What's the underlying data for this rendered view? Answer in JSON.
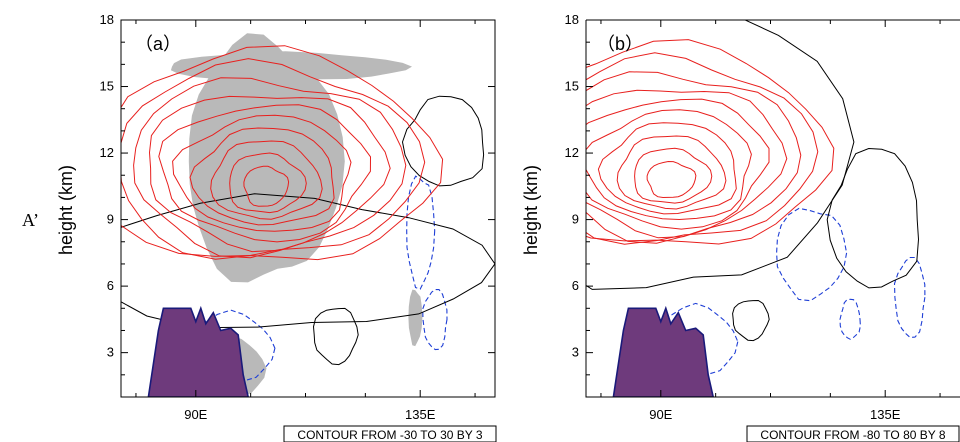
{
  "figure_label": "A’",
  "chart_data": [
    {
      "type": "contour",
      "panel_label": "（a）",
      "ylabel": "height (km)",
      "xlabel": "",
      "x_ticks": [
        "90E",
        "135E"
      ],
      "x_tick_values": [
        90,
        135
      ],
      "y_ticks": [
        "3",
        "6",
        "9",
        "12",
        "15",
        "18"
      ],
      "y_tick_values": [
        3,
        6,
        9,
        12,
        15,
        18
      ],
      "xlim": [
        75,
        150
      ],
      "ylim": [
        1,
        18
      ],
      "contour_info": "CONTOUR FROM -30 TO 30 BY 3",
      "contour_min": -30,
      "contour_max": 30,
      "contour_interval": 3,
      "positive_center": {
        "lon": 104,
        "height_km": 10.5
      },
      "positive_contour_count": 10,
      "shading": "gray",
      "terrain": "purple"
    },
    {
      "type": "contour",
      "panel_label": "（b）",
      "ylabel": "height (km)",
      "xlabel": "",
      "x_ticks": [
        "90E",
        "135E"
      ],
      "x_tick_values": [
        90,
        135
      ],
      "y_ticks": [
        "3",
        "6",
        "9",
        "12",
        "15",
        "18"
      ],
      "y_tick_values": [
        3,
        6,
        9,
        12,
        15,
        18
      ],
      "xlim": [
        75,
        150
      ],
      "ylim": [
        1,
        18
      ],
      "contour_info": "CONTOUR FROM -80 TO 80 BY 8",
      "contour_min": -80,
      "contour_max": 80,
      "contour_interval": 8,
      "positive_center": {
        "lon": 92,
        "height_km": 10.8
      },
      "positive_contour_count": 10,
      "shading": "none",
      "terrain": "purple"
    }
  ],
  "colors": {
    "positive_contour": "#e8201e",
    "zero_contour": "#000000",
    "negative_contour": "#1f3fd6",
    "shading": "#b9b9b9",
    "terrain": "#6e3a7c",
    "terrain_edge": "#1a1a7a"
  }
}
